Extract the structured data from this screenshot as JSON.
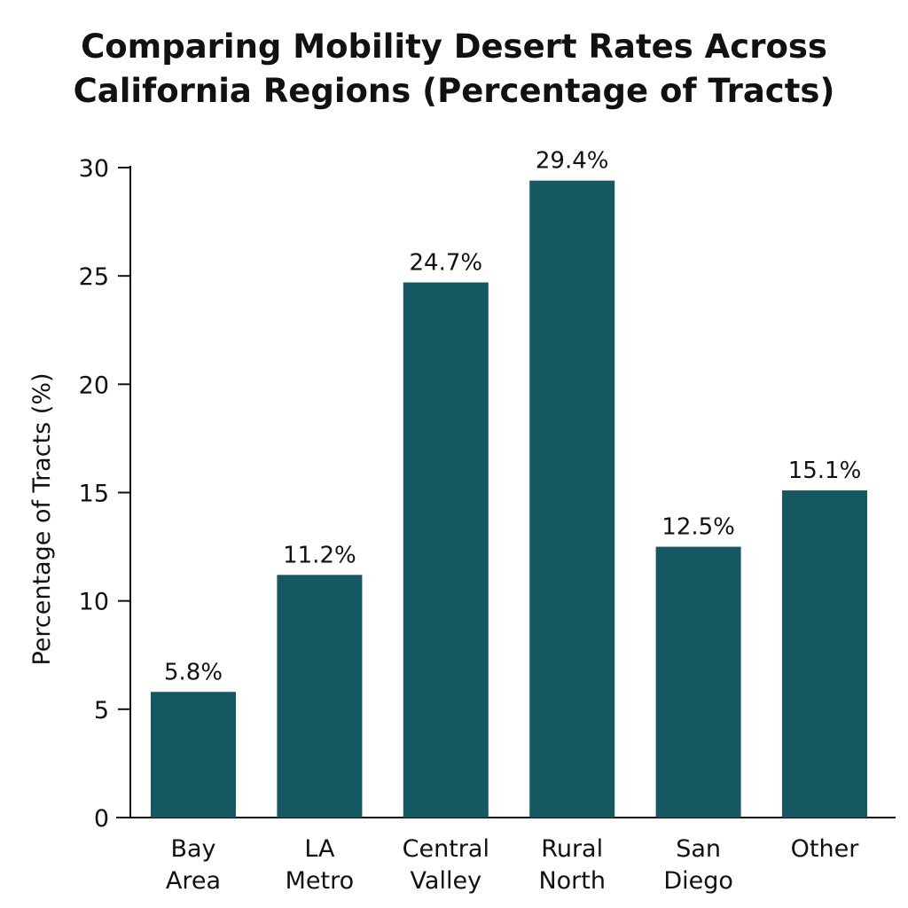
{
  "chart_data": {
    "type": "bar",
    "title_lines": [
      "Comparing Mobility Desert Rates Across",
      "California Regions (Percentage of Tracts)"
    ],
    "categories": [
      [
        "Bay",
        "Area"
      ],
      [
        "LA",
        "Metro"
      ],
      [
        "Central",
        "Valley"
      ],
      [
        "Rural",
        "North"
      ],
      [
        "San",
        "Diego"
      ],
      [
        "Other"
      ]
    ],
    "values": [
      5.8,
      11.2,
      24.7,
      29.4,
      12.5,
      15.1
    ],
    "data_labels": [
      "5.8%",
      "11.2%",
      "24.7%",
      "29.4%",
      "12.5%",
      "15.1%"
    ],
    "xlabel": "",
    "ylabel": "Percentage of Tracts (%)",
    "ylim": [
      0,
      30
    ],
    "yticks": [
      0,
      5,
      10,
      15,
      20,
      25,
      30
    ],
    "grid": false,
    "bar_color": "#165862"
  }
}
